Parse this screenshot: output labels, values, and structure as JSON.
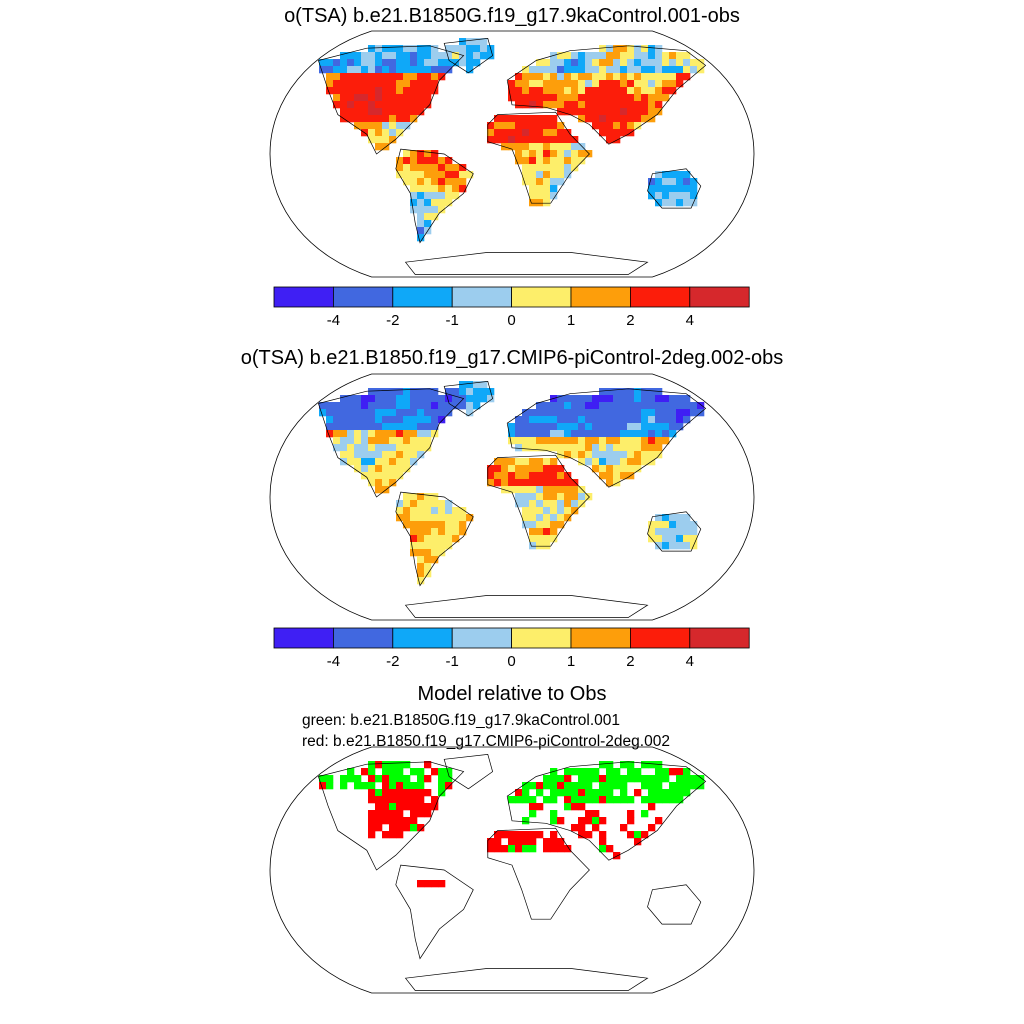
{
  "panels": [
    {
      "title": "o(TSA) b.e21.B1850G.f19_g17.9kaControl.001-obs",
      "type": "map",
      "style": "warm",
      "seed": 7
    },
    {
      "title": "o(TSA) b.e21.B1850.f19_g17.CMIP6-piControl-2deg.002-obs",
      "type": "map",
      "style": "cold",
      "seed": 23
    },
    {
      "title": "Model relative to Obs",
      "type": "comparison",
      "legend_green": "green: b.e21.B1850G.f19_g17.9kaControl.001",
      "legend_red": "red: b.e21.B1850.f19_g17.CMIP6-piControl-2deg.002",
      "seed": 41
    }
  ],
  "colorbar": {
    "colors": [
      "#3f1ff4",
      "#4168e0",
      "#0fa8f8",
      "#9ccdee",
      "#fdee6a",
      "#fd9e0b",
      "#fc1d0a",
      "#d6282c"
    ],
    "labels": [
      "-4",
      "-2",
      "-1",
      "0",
      "1",
      "2",
      "4"
    ]
  },
  "chart_data": [
    {
      "type": "heatmap",
      "title": "o(TSA) b.e21.B1850G.f19_g17.9kaControl.001-obs",
      "projection": "Robinson (global land)",
      "bin_edges": [
        -4,
        -2,
        -1,
        0,
        1,
        2,
        4
      ],
      "summary": "Mostly positive anomalies (+1 to >+4) over eastern North America, Sahara, Middle East and central Asia; negative (-1 to -2) over Arctic North America, Siberia rim, Australia and parts of South America."
    },
    {
      "type": "heatmap",
      "title": "o(TSA) b.e21.B1850.f19_g17.CMIP6-piControl-2deg.002-obs",
      "projection": "Robinson (global land)",
      "bin_edges": [
        -4,
        -2,
        -1,
        0,
        1,
        2,
        4
      ],
      "summary": "Strong negative anomalies (-2 to -4) over northern Eurasia and northern Canada; positive (+1 to +2) over Sahara, Middle East, southern Africa and South America."
    },
    {
      "type": "heatmap",
      "title": "Model relative to Obs",
      "categories": [
        "green: 9kaControl closer to obs",
        "red: CMIP6-piControl closer to obs"
      ],
      "summary": "Red dominates eastern North America, Sahara, Middle East and southern Eurasia; green dominates northern Eurasia and Arctic North America."
    }
  ]
}
